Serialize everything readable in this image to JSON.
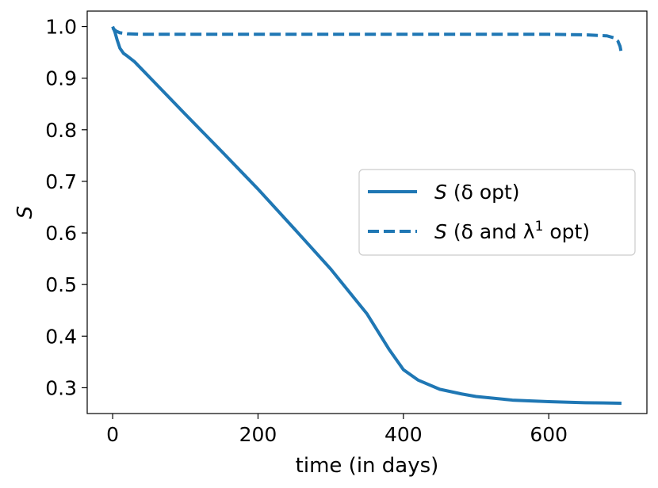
{
  "chart_data": {
    "type": "line",
    "xlabel": "time (in days)",
    "ylabel": "S",
    "xlim": [
      -35,
      735
    ],
    "ylim": [
      0.25,
      1.03
    ],
    "xticks": [
      0,
      200,
      400,
      600
    ],
    "xtick_labels": [
      "0",
      "200",
      "400",
      "600"
    ],
    "yticks": [
      0.3,
      0.4,
      0.5,
      0.6,
      0.7,
      0.8,
      0.9,
      1.0
    ],
    "ytick_labels": [
      "0.3",
      "0.4",
      "0.5",
      "0.6",
      "0.7",
      "0.8",
      "0.9",
      "1.0"
    ],
    "grid": false,
    "legend_position": "center-right",
    "series": [
      {
        "name": "S (δ opt)",
        "legend_main": "S",
        "legend_rest": " (δ opt)",
        "style": "solid",
        "color": "#1f77b4",
        "x": [
          0,
          3,
          6,
          10,
          15,
          20,
          30,
          50,
          100,
          150,
          200,
          250,
          300,
          350,
          380,
          400,
          420,
          450,
          480,
          500,
          550,
          600,
          650,
          700
        ],
        "y": [
          1.0,
          0.99,
          0.975,
          0.958,
          0.948,
          0.943,
          0.932,
          0.903,
          0.83,
          0.758,
          0.685,
          0.608,
          0.53,
          0.443,
          0.375,
          0.335,
          0.315,
          0.297,
          0.288,
          0.283,
          0.276,
          0.273,
          0.271,
          0.27
        ]
      },
      {
        "name": "S (δ and λ1 opt)",
        "legend_main": "S",
        "legend_rest": " (δ and λ",
        "legend_sup": "1",
        "legend_tail": " opt)",
        "style": "dashed",
        "color": "#1f77b4",
        "x": [
          0,
          5,
          10,
          20,
          40,
          100,
          200,
          300,
          400,
          500,
          600,
          650,
          680,
          690,
          695,
          698,
          700
        ],
        "y": [
          0.997,
          0.991,
          0.988,
          0.986,
          0.985,
          0.985,
          0.985,
          0.985,
          0.985,
          0.985,
          0.985,
          0.984,
          0.982,
          0.978,
          0.972,
          0.962,
          0.948
        ]
      }
    ]
  }
}
